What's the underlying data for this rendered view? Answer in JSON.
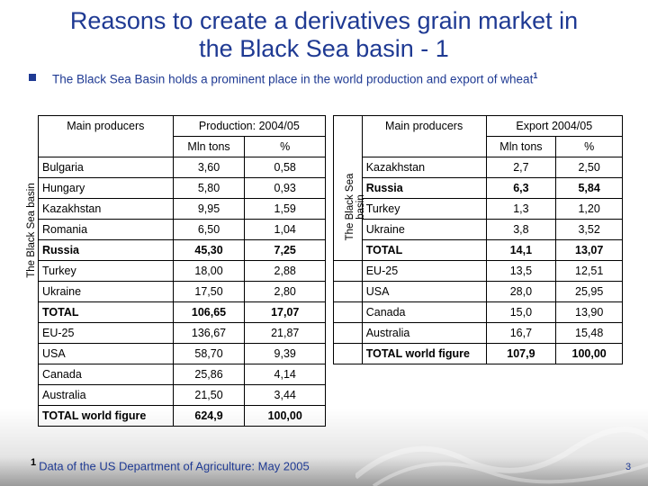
{
  "title": {
    "line1": "Reasons to create a derivatives grain market in",
    "line2": "the Black Sea basin - 1"
  },
  "bullet": {
    "text": "The Black Sea Basin holds a prominent place in the world production and export of wheat",
    "sup": "1"
  },
  "production_table": {
    "side_label": "The Black Sea basin",
    "header_producers": "Main producers",
    "header_group": "Production: 2004/05",
    "col_tons": "Mln tons",
    "col_pct": "%",
    "rows": [
      {
        "name": "Bulgaria",
        "tons": "3,60",
        "pct": "0,58"
      },
      {
        "name": "Hungary",
        "tons": "5,80",
        "pct": "0,93"
      },
      {
        "name": "Kazakhstan",
        "tons": "9,95",
        "pct": "1,59"
      },
      {
        "name": "Romania",
        "tons": "6,50",
        "pct": "1,04"
      },
      {
        "name": "Russia",
        "tons": "45,30",
        "pct": "7,25"
      },
      {
        "name": "Turkey",
        "tons": "18,00",
        "pct": "2,88"
      },
      {
        "name": "Ukraine",
        "tons": "17,50",
        "pct": "2,80"
      },
      {
        "name": "TOTAL",
        "tons": "106,65",
        "pct": "17,07"
      },
      {
        "name": "EU-25",
        "tons": "136,67",
        "pct": "21,87"
      },
      {
        "name": "USA",
        "tons": "58,70",
        "pct": "9,39"
      },
      {
        "name": "Canada",
        "tons": "25,86",
        "pct": "4,14"
      },
      {
        "name": "Australia",
        "tons": "21,50",
        "pct": "3,44"
      },
      {
        "name": "TOTAL world figure",
        "tons": "624,9",
        "pct": "100,00"
      }
    ]
  },
  "export_table": {
    "side_label_line1": "The Black Sea",
    "side_label_line2": "basin",
    "header_producers": "Main producers",
    "header_group": "Export 2004/05",
    "col_tons": "Mln tons",
    "col_pct": "%",
    "rows": [
      {
        "name": "Kazakhstan",
        "tons": "2,7",
        "pct": "2,50"
      },
      {
        "name": "Russia",
        "tons": "6,3",
        "pct": "5,84"
      },
      {
        "name": "Turkey",
        "tons": "1,3",
        "pct": "1,20"
      },
      {
        "name": "Ukraine",
        "tons": "3,8",
        "pct": "3,52"
      },
      {
        "name": "TOTAL",
        "tons": "14,1",
        "pct": "13,07"
      },
      {
        "name": "EU-25",
        "tons": "13,5",
        "pct": "12,51"
      },
      {
        "name": "USA",
        "tons": "28,0",
        "pct": "25,95"
      },
      {
        "name": "Canada",
        "tons": "15,0",
        "pct": "13,90"
      },
      {
        "name": "Australia",
        "tons": "16,7",
        "pct": "15,48"
      },
      {
        "name": "TOTAL world figure",
        "tons": "107,9",
        "pct": "100,00"
      }
    ]
  },
  "footnote": {
    "sup": "1",
    "text": "Data of the US Department of Agriculture: May 2005"
  },
  "page_number": "3"
}
